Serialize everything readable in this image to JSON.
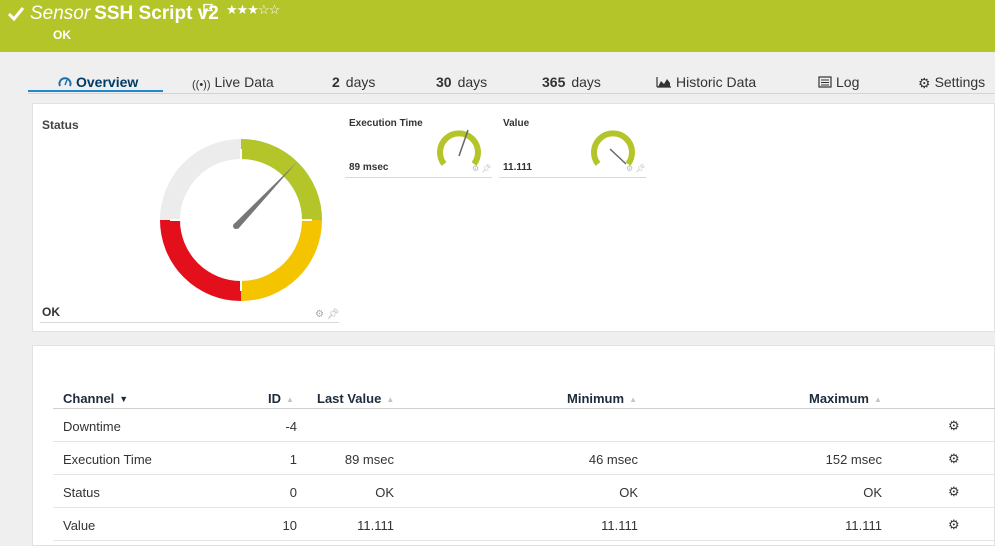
{
  "header": {
    "prefix": "Sensor",
    "title": "SSH Script v2",
    "status": "OK",
    "rating": "★★★☆☆",
    "bg_color": "#b4c52a"
  },
  "tabs": [
    {
      "label": "Overview",
      "icon": "gauge-icon",
      "active": true
    },
    {
      "label": "Live Data",
      "icon": "broadcast-icon"
    },
    {
      "num": "2",
      "label": "days"
    },
    {
      "num": "30",
      "label": "days"
    },
    {
      "num": "365",
      "label": "days"
    },
    {
      "label": "Historic Data",
      "icon": "area-chart-icon"
    },
    {
      "label": "Log",
      "icon": "log-icon"
    },
    {
      "label": "Settings",
      "icon": "gear-icon"
    }
  ],
  "status_gauge": {
    "title": "Status",
    "value": "OK",
    "segment_colors": {
      "ok": "#b4c52a",
      "warning": "#f5c400",
      "error": "#e3101b",
      "unknown": "#ececec"
    }
  },
  "mini_gauges": [
    {
      "title": "Execution Time",
      "value": "89 msec"
    },
    {
      "title": "Value",
      "value": "11.111"
    }
  ],
  "table": {
    "headers": {
      "channel": "Channel",
      "id": "ID",
      "last": "Last Value",
      "min": "Minimum",
      "max": "Maximum"
    },
    "rows": [
      {
        "channel": "Downtime",
        "id": "-4",
        "last": "",
        "min": "",
        "max": ""
      },
      {
        "channel": "Execution Time",
        "id": "1",
        "last": "89 msec",
        "min": "46 msec",
        "max": "152 msec"
      },
      {
        "channel": "Status",
        "id": "0",
        "last": "OK",
        "min": "OK",
        "max": "OK"
      },
      {
        "channel": "Value",
        "id": "10",
        "last": "11.111",
        "min": "11.111",
        "max": "11.111"
      }
    ]
  }
}
